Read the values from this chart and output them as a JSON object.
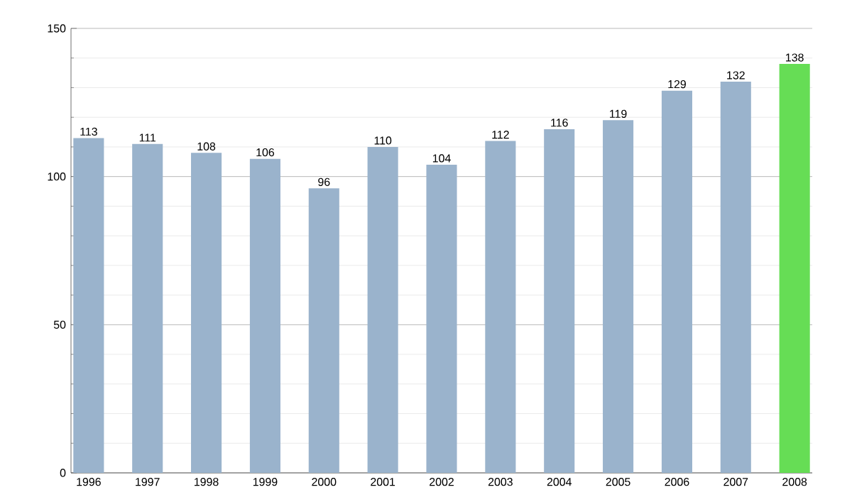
{
  "chart_data": {
    "type": "bar",
    "categories": [
      "1996",
      "1997",
      "1998",
      "1999",
      "2000",
      "2001",
      "2002",
      "2003",
      "2004",
      "2005",
      "2006",
      "2007",
      "2008"
    ],
    "values": [
      113,
      111,
      108,
      106,
      96,
      110,
      104,
      112,
      116,
      119,
      129,
      132,
      138
    ],
    "colors": [
      "#9ab3cc",
      "#9ab3cc",
      "#9ab3cc",
      "#9ab3cc",
      "#9ab3cc",
      "#9ab3cc",
      "#9ab3cc",
      "#9ab3cc",
      "#9ab3cc",
      "#9ab3cc",
      "#9ab3cc",
      "#9ab3cc",
      "#66dd55"
    ],
    "ylim": [
      0,
      150
    ],
    "yticks": [
      0,
      {
        "value": 10,
        "label": null
      },
      {
        "value": 20,
        "label": null
      },
      {
        "value": 30,
        "label": null
      },
      {
        "value": 40,
        "label": null
      },
      50,
      {
        "value": 60,
        "label": null
      },
      {
        "value": 70,
        "label": null
      },
      {
        "value": 80,
        "label": null
      },
      {
        "value": 90,
        "label": null
      },
      100,
      {
        "value": 110,
        "label": null
      },
      {
        "value": 120,
        "label": null
      },
      {
        "value": 130,
        "label": null
      },
      {
        "value": 140,
        "label": null
      },
      150
    ],
    "grid": "y",
    "data_labels": true
  }
}
